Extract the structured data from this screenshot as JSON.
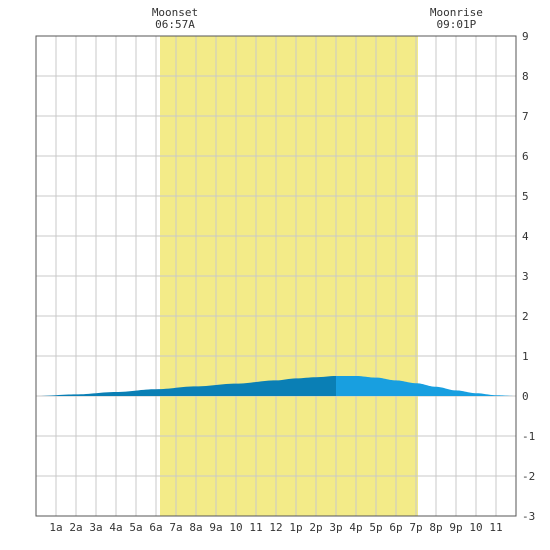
{
  "chart_data": {
    "type": "area",
    "x_categories": [
      "1a",
      "2a",
      "3a",
      "4a",
      "5a",
      "6a",
      "7a",
      "8a",
      "9a",
      "10",
      "11",
      "12",
      "1p",
      "2p",
      "3p",
      "4p",
      "5p",
      "6p",
      "7p",
      "8p",
      "9p",
      "10",
      "11"
    ],
    "y_ticks": [
      9,
      8,
      7,
      6,
      5,
      4,
      3,
      2,
      1,
      0,
      -1,
      -2,
      -3
    ],
    "ylim": [
      -3,
      9
    ],
    "xlim_hours": [
      0,
      24
    ],
    "grid": true,
    "daylight_hours": [
      6.2,
      19.1
    ],
    "curve_x_hours": [
      0,
      2,
      4,
      6,
      8,
      10,
      12,
      13,
      14,
      15,
      16,
      17,
      18,
      19,
      20,
      21,
      22,
      23,
      24
    ],
    "curve_y": [
      0.0,
      0.04,
      0.1,
      0.17,
      0.24,
      0.31,
      0.39,
      0.44,
      0.47,
      0.5,
      0.5,
      0.46,
      0.39,
      0.32,
      0.23,
      0.14,
      0.07,
      0.02,
      0.0
    ],
    "rising_until_hour": 15,
    "annotations": [
      {
        "label": "Moonset",
        "time": "06:57A",
        "hour": 6.95
      },
      {
        "label": "Moonrise",
        "time": "09:01P",
        "hour": 21.02
      }
    ],
    "colors": {
      "daylight": "#f3eb88",
      "rising_fill": "#0a7fb5",
      "falling_fill": "#189fe0",
      "grid": "#c8c8c8",
      "text": "#333333"
    }
  }
}
